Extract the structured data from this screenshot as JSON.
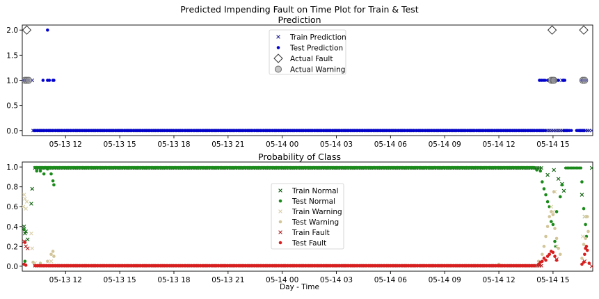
{
  "figure": {
    "suptitle": "Predicted Impending Fault on Time Plot for Train & Test",
    "xlabel": "Day - Time"
  },
  "colors": {
    "train_pred": "#1f1f8f",
    "test_pred": "#0000cc",
    "actual": "#333333",
    "train_normal": "#0b5e0b",
    "test_normal": "#1a8a1a",
    "train_warning": "#d9cfa8",
    "test_warning": "#d2c59a",
    "train_fault": "#b11f1f",
    "test_fault": "#d81e1e"
  },
  "chart_data": [
    {
      "type": "scatter",
      "title": "Prediction",
      "xlabel": "",
      "ylabel": "",
      "x_ticks": [
        "05-13 12",
        "05-13 15",
        "05-13 18",
        "05-13 21",
        "05-14 00",
        "05-14 03",
        "05-14 06",
        "05-14 09",
        "05-14 12",
        "05-14 15"
      ],
      "x_tick_hours": [
        12,
        15,
        18,
        21,
        24,
        27,
        30,
        33,
        36,
        39
      ],
      "xlim_hours": [
        9.6,
        41.2
      ],
      "ylim": [
        -0.1,
        2.1
      ],
      "y_ticks": [
        "0.0",
        "0.5",
        "1.0",
        "1.5",
        "2.0"
      ],
      "legend_position": "top-center",
      "legend": [
        "Train Prediction",
        "Test Prediction",
        "Actual Fault",
        "Actual Warning"
      ],
      "series": [
        {
          "name": "Train Prediction",
          "marker": "x",
          "value_segments": [
            {
              "from": 9.65,
              "to": 9.95,
              "value": 1
            },
            {
              "from": 10.2,
              "to": 28.4,
              "value": 0
            },
            {
              "from": 28.4,
              "to": 39.9,
              "value": 0
            },
            {
              "from": 38.95,
              "to": 39.25,
              "value": 1
            },
            {
              "from": 40.4,
              "to": 41.1,
              "value": 0
            }
          ],
          "points": [
            [
              10.15,
              1
            ],
            [
              41.15,
              0
            ],
            [
              39.5,
              1
            ]
          ]
        },
        {
          "name": "Test Prediction",
          "marker": "o",
          "value_segments": [
            {
              "from": 10.25,
              "to": 38.6,
              "value": 0
            },
            {
              "from": 39.6,
              "to": 40.05,
              "value": 0
            },
            {
              "from": 40.3,
              "to": 40.75,
              "value": 0
            }
          ],
          "points": [
            [
              9.7,
              1
            ],
            [
              9.8,
              1
            ],
            [
              9.9,
              1
            ],
            [
              10.75,
              1
            ],
            [
              11.0,
              1
            ],
            [
              11.1,
              1
            ],
            [
              11.3,
              1
            ],
            [
              11.35,
              1
            ],
            [
              11.0,
              2
            ],
            [
              38.25,
              1
            ],
            [
              38.35,
              1
            ],
            [
              38.45,
              1
            ],
            [
              38.55,
              1
            ],
            [
              38.7,
              1
            ],
            [
              39.2,
              1
            ],
            [
              39.3,
              1
            ],
            [
              39.55,
              1
            ],
            [
              39.65,
              1
            ],
            [
              40.6,
              1
            ],
            [
              40.7,
              1
            ],
            [
              40.8,
              1
            ]
          ]
        },
        {
          "name": "Actual Fault",
          "marker": "D",
          "points": [
            [
              9.85,
              2
            ],
            [
              38.95,
              2
            ],
            [
              40.7,
              2
            ]
          ]
        },
        {
          "name": "Actual Warning",
          "marker": "o-open",
          "points": [
            [
              9.75,
              1
            ],
            [
              9.85,
              1
            ],
            [
              9.95,
              1
            ],
            [
              38.9,
              1
            ],
            [
              39.0,
              1
            ],
            [
              39.05,
              1
            ],
            [
              40.65,
              1
            ],
            [
              40.75,
              1
            ]
          ]
        }
      ]
    },
    {
      "type": "scatter",
      "title": "Probability of Class",
      "xlabel": "Day - Time",
      "ylabel": "",
      "x_ticks": [
        "05-13 12",
        "05-13 15",
        "05-13 18",
        "05-13 21",
        "05-14 00",
        "05-14 03",
        "05-14 06",
        "05-14 09",
        "05-14 12",
        "05-14 15"
      ],
      "x_tick_hours": [
        12,
        15,
        18,
        21,
        24,
        27,
        30,
        33,
        36,
        39
      ],
      "xlim_hours": [
        9.6,
        41.2
      ],
      "ylim": [
        -0.05,
        1.05
      ],
      "y_ticks": [
        "0.0",
        "0.2",
        "0.4",
        "0.6",
        "0.8",
        "1.0"
      ],
      "legend_position": "center",
      "legend": [
        "Train Normal",
        "Test Normal",
        "Train Warning",
        "Test Warning",
        "Train Fault",
        "Test Fault"
      ],
      "series": [
        {
          "name": "Train Normal",
          "marker": "x",
          "value_segments": [
            {
              "from": 10.3,
              "to": 38.4,
              "value": 0.99
            }
          ],
          "points": [
            [
              9.7,
              0.4
            ],
            [
              9.75,
              0.33
            ],
            [
              9.8,
              0.35
            ],
            [
              9.9,
              0.27
            ],
            [
              10.1,
              0.63
            ],
            [
              10.15,
              0.78
            ],
            [
              39.05,
              0.97
            ],
            [
              39.3,
              0.88
            ],
            [
              39.5,
              0.83
            ],
            [
              39.6,
              0.76
            ],
            [
              40.6,
              0.72
            ],
            [
              40.75,
              0.5
            ],
            [
              41.15,
              0.99
            ],
            [
              38.7,
              0.92
            ]
          ]
        },
        {
          "name": "Test Normal",
          "marker": "o",
          "value_segments": [
            {
              "from": 10.3,
              "to": 38.0,
              "value": 0.995
            },
            {
              "from": 39.7,
              "to": 40.6,
              "value": 0.99
            }
          ],
          "points": [
            [
              9.7,
              0.37
            ],
            [
              9.75,
              0.05
            ],
            [
              10.4,
              0.96
            ],
            [
              10.6,
              0.96
            ],
            [
              10.8,
              0.93
            ],
            [
              11.0,
              0.98
            ],
            [
              11.2,
              0.93
            ],
            [
              11.3,
              0.86
            ],
            [
              11.35,
              0.82
            ],
            [
              38.1,
              0.97
            ],
            [
              38.3,
              0.96
            ],
            [
              38.4,
              0.85
            ],
            [
              38.5,
              0.78
            ],
            [
              38.6,
              0.72
            ],
            [
              38.7,
              0.65
            ],
            [
              38.8,
              0.6
            ],
            [
              38.9,
              0.45
            ],
            [
              39.0,
              0.42
            ],
            [
              39.1,
              0.25
            ],
            [
              39.15,
              0.2
            ],
            [
              39.2,
              0.55
            ],
            [
              39.4,
              0.7
            ],
            [
              39.5,
              0.82
            ],
            [
              40.6,
              0.85
            ],
            [
              40.7,
              0.58
            ],
            [
              40.8,
              0.42
            ],
            [
              40.85,
              0.3
            ]
          ]
        },
        {
          "name": "Train Warning",
          "marker": "x",
          "points": [
            [
              9.65,
              0.6
            ],
            [
              9.7,
              0.72
            ],
            [
              9.75,
              0.68
            ],
            [
              9.8,
              0.58
            ],
            [
              9.85,
              0.65
            ],
            [
              10.1,
              0.33
            ],
            [
              10.15,
              0.18
            ],
            [
              10.3,
              0.03
            ],
            [
              11.2,
              0.05
            ],
            [
              38.9,
              0.6
            ],
            [
              39.0,
              0.55
            ],
            [
              39.1,
              0.75
            ],
            [
              39.2,
              0.2
            ],
            [
              40.65,
              0.3
            ],
            [
              40.75,
              0.5
            ]
          ]
        },
        {
          "name": "Test Warning",
          "marker": "o",
          "points": [
            [
              10.2,
              0.04
            ],
            [
              10.6,
              0.03
            ],
            [
              11.0,
              0.05
            ],
            [
              11.2,
              0.12
            ],
            [
              11.3,
              0.15
            ],
            [
              11.35,
              0.1
            ],
            [
              36.0,
              0.02
            ],
            [
              38.2,
              0.05
            ],
            [
              38.4,
              0.12
            ],
            [
              38.5,
              0.2
            ],
            [
              38.6,
              0.3
            ],
            [
              38.7,
              0.4
            ],
            [
              38.8,
              0.5
            ],
            [
              38.9,
              0.55
            ],
            [
              39.0,
              0.52
            ],
            [
              39.05,
              0.75
            ],
            [
              39.1,
              0.38
            ],
            [
              39.2,
              0.28
            ],
            [
              39.3,
              0.18
            ],
            [
              39.4,
              0.12
            ],
            [
              40.6,
              0.08
            ],
            [
              40.7,
              0.22
            ],
            [
              40.8,
              0.28
            ],
            [
              40.9,
              0.5
            ],
            [
              40.95,
              0.35
            ]
          ]
        },
        {
          "name": "Train Fault",
          "marker": "x",
          "value_segments": [
            {
              "from": 10.3,
              "to": 38.4,
              "value": 0.005
            }
          ],
          "points": [
            [
              9.7,
              0.25
            ],
            [
              9.8,
              0.2
            ],
            [
              9.9,
              0.18
            ],
            [
              41.15,
              0.0
            ],
            [
              39.2,
              0.07
            ],
            [
              40.75,
              0.05
            ]
          ]
        },
        {
          "name": "Test Fault",
          "marker": "o",
          "value_segments": [
            {
              "from": 10.3,
              "to": 38.0,
              "value": 0.005
            }
          ],
          "points": [
            [
              9.7,
              0.02
            ],
            [
              9.75,
              0.24
            ],
            [
              9.8,
              0.01
            ],
            [
              38.2,
              0.02
            ],
            [
              38.3,
              0.04
            ],
            [
              38.4,
              0.05
            ],
            [
              38.5,
              0.08
            ],
            [
              38.6,
              0.06
            ],
            [
              38.7,
              0.1
            ],
            [
              38.8,
              0.12
            ],
            [
              38.9,
              0.15
            ],
            [
              39.0,
              0.14
            ],
            [
              39.1,
              0.1
            ],
            [
              39.2,
              0.06
            ],
            [
              40.6,
              0.02
            ],
            [
              40.7,
              0.04
            ],
            [
              40.75,
              0.12
            ],
            [
              40.8,
              0.18
            ],
            [
              40.85,
              0.2
            ],
            [
              40.9,
              0.16
            ],
            [
              41.0,
              0.03
            ]
          ]
        }
      ]
    }
  ]
}
